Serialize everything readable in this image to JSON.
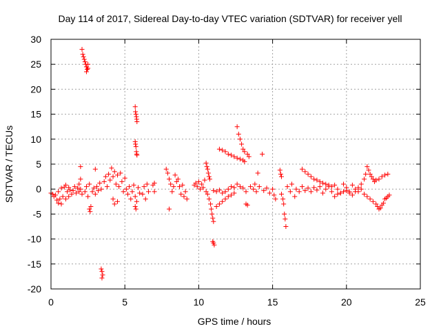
{
  "chart_data": {
    "type": "scatter",
    "title": "Day 114 of 2017, Sidereal Day-to-day VTEC variation (SDTVAR) for receiver yell",
    "xlabel": "GPS time / hours",
    "ylabel": "SDTVAR / TECUs",
    "xlim": [
      0,
      25
    ],
    "ylim": [
      -20,
      30
    ],
    "xticks": [
      0,
      5,
      10,
      15,
      20,
      25
    ],
    "yticks": [
      -20,
      -15,
      -10,
      -5,
      0,
      5,
      10,
      15,
      20,
      25,
      30
    ],
    "grid": true,
    "marker": "+",
    "marker_color": "#ff0000",
    "series": [
      {
        "name": "SDTVAR",
        "points": [
          [
            0.0,
            -0.8
          ],
          [
            0.1,
            -1.0
          ],
          [
            0.2,
            -1.5
          ],
          [
            0.3,
            -1.2
          ],
          [
            0.4,
            -2.2
          ],
          [
            0.5,
            -2.8
          ],
          [
            0.5,
            -0.5
          ],
          [
            0.6,
            -2.0
          ],
          [
            0.7,
            -3.0
          ],
          [
            0.7,
            0.2
          ],
          [
            0.8,
            -1.5
          ],
          [
            0.9,
            0.4
          ],
          [
            1.0,
            -2.0
          ],
          [
            1.0,
            0.8
          ],
          [
            1.1,
            -0.5
          ],
          [
            1.2,
            -1.5
          ],
          [
            1.2,
            0.3
          ],
          [
            1.3,
            -0.2
          ],
          [
            1.4,
            -1.0
          ],
          [
            1.5,
            -0.3
          ],
          [
            1.6,
            0.5
          ],
          [
            1.7,
            -0.8
          ],
          [
            1.8,
            0.2
          ],
          [
            1.9,
            1.0
          ],
          [
            1.9,
            -0.5
          ],
          [
            2.0,
            2.0
          ],
          [
            2.0,
            4.5
          ],
          [
            2.0,
            0.0
          ],
          [
            2.1,
            -1.0
          ],
          [
            2.1,
            28.0
          ],
          [
            2.15,
            27.0
          ],
          [
            2.2,
            26.5
          ],
          [
            2.25,
            26.0
          ],
          [
            2.3,
            25.5
          ],
          [
            2.35,
            25.0
          ],
          [
            2.4,
            24.5
          ],
          [
            2.4,
            23.5
          ],
          [
            2.45,
            24.0
          ],
          [
            2.5,
            25.0
          ],
          [
            2.5,
            24.2
          ],
          [
            2.3,
            -0.5
          ],
          [
            2.4,
            0.5
          ],
          [
            2.5,
            -1.5
          ],
          [
            2.6,
            1.0
          ],
          [
            2.6,
            -4.0
          ],
          [
            2.65,
            -4.5
          ],
          [
            2.7,
            -3.5
          ],
          [
            2.8,
            -0.5
          ],
          [
            2.9,
            0.2
          ],
          [
            3.0,
            -1.0
          ],
          [
            3.0,
            4.0
          ],
          [
            3.1,
            0.5
          ],
          [
            3.2,
            -0.3
          ],
          [
            3.3,
            1.2
          ],
          [
            3.4,
            0.0
          ],
          [
            3.4,
            -16.0
          ],
          [
            3.45,
            -16.5
          ],
          [
            3.5,
            -17.2
          ],
          [
            3.45,
            -17.8
          ],
          [
            3.6,
            1.5
          ],
          [
            3.7,
            2.5
          ],
          [
            3.8,
            0.5
          ],
          [
            3.9,
            3.0
          ],
          [
            4.0,
            1.8
          ],
          [
            4.1,
            4.2
          ],
          [
            4.2,
            -2.0
          ],
          [
            4.2,
            2.5
          ],
          [
            4.3,
            -3.0
          ],
          [
            4.3,
            3.5
          ],
          [
            4.4,
            1.0
          ],
          [
            4.5,
            2.8
          ],
          [
            4.5,
            -2.5
          ],
          [
            4.6,
            0.5
          ],
          [
            4.7,
            3.2
          ],
          [
            4.8,
            1.5
          ],
          [
            4.9,
            -0.5
          ],
          [
            5.0,
            2.2
          ],
          [
            5.1,
            0.0
          ],
          [
            5.2,
            -1.0
          ],
          [
            5.3,
            0.5
          ],
          [
            5.4,
            -2.0
          ],
          [
            5.5,
            -0.5
          ],
          [
            5.6,
            0.8
          ],
          [
            5.7,
            -1.5
          ],
          [
            5.7,
            -3.5
          ],
          [
            5.75,
            -4.0
          ],
          [
            5.8,
            -2.5
          ],
          [
            5.9,
            0.3
          ],
          [
            6.0,
            -0.8
          ],
          [
            5.7,
            16.5
          ],
          [
            5.72,
            15.5
          ],
          [
            5.75,
            15.0
          ],
          [
            5.78,
            14.5
          ],
          [
            5.8,
            14.0
          ],
          [
            5.82,
            13.5
          ],
          [
            5.7,
            9.5
          ],
          [
            5.72,
            9.0
          ],
          [
            5.75,
            8.5
          ],
          [
            5.78,
            7.5
          ],
          [
            5.8,
            7.0
          ],
          [
            5.82,
            6.8
          ],
          [
            6.2,
            -1.0
          ],
          [
            6.3,
            0.5
          ],
          [
            6.4,
            -2.0
          ],
          [
            6.5,
            1.0
          ],
          [
            6.6,
            -0.5
          ],
          [
            6.9,
            0.8
          ],
          [
            7.0,
            -0.5
          ],
          [
            7.0,
            1.2
          ],
          [
            7.8,
            4.0
          ],
          [
            7.9,
            3.2
          ],
          [
            8.0,
            2.0
          ],
          [
            8.0,
            -4.0
          ],
          [
            8.1,
            1.0
          ],
          [
            8.2,
            -0.5
          ],
          [
            8.3,
            0.5
          ],
          [
            8.4,
            2.8
          ],
          [
            8.5,
            1.5
          ],
          [
            8.6,
            2.0
          ],
          [
            8.7,
            0.5
          ],
          [
            8.8,
            -1.0
          ],
          [
            8.9,
            0.8
          ],
          [
            9.0,
            -1.5
          ],
          [
            9.1,
            -0.5
          ],
          [
            9.2,
            -2.0
          ],
          [
            9.7,
            0.8
          ],
          [
            9.8,
            1.2
          ],
          [
            9.9,
            0.5
          ],
          [
            10.0,
            1.5
          ],
          [
            10.1,
            0.0
          ],
          [
            10.2,
            1.0
          ],
          [
            10.3,
            0.3
          ],
          [
            10.4,
            1.8
          ],
          [
            10.5,
            5.2
          ],
          [
            10.55,
            4.5
          ],
          [
            10.6,
            4.0
          ],
          [
            10.65,
            3.2
          ],
          [
            10.7,
            2.5
          ],
          [
            10.75,
            2.0
          ],
          [
            10.5,
            -0.5
          ],
          [
            10.6,
            -1.0
          ],
          [
            10.7,
            -2.0
          ],
          [
            10.8,
            -3.0
          ],
          [
            10.85,
            -4.0
          ],
          [
            10.9,
            -5.0
          ],
          [
            10.95,
            -5.8
          ],
          [
            11.0,
            -6.5
          ],
          [
            11.0,
            -10.8
          ],
          [
            11.05,
            -11.2
          ],
          [
            10.95,
            -10.5
          ],
          [
            11.0,
            -0.3
          ],
          [
            11.2,
            -0.5
          ],
          [
            11.4,
            -0.2
          ],
          [
            11.6,
            -0.8
          ],
          [
            11.8,
            -0.5
          ],
          [
            12.0,
            0.0
          ],
          [
            12.2,
            0.5
          ],
          [
            12.4,
            0.3
          ],
          [
            12.6,
            1.0
          ],
          [
            12.8,
            0.5
          ],
          [
            13.0,
            0.2
          ],
          [
            13.2,
            -0.5
          ],
          [
            11.2,
            -3.5
          ],
          [
            11.4,
            -3.0
          ],
          [
            11.6,
            -2.5
          ],
          [
            11.8,
            -2.0
          ],
          [
            12.0,
            -1.5
          ],
          [
            12.2,
            -1.2
          ],
          [
            12.4,
            -0.8
          ],
          [
            11.4,
            8.0
          ],
          [
            11.6,
            7.8
          ],
          [
            11.8,
            7.5
          ],
          [
            12.0,
            7.0
          ],
          [
            12.2,
            6.8
          ],
          [
            12.4,
            6.5
          ],
          [
            12.6,
            6.2
          ],
          [
            12.8,
            6.0
          ],
          [
            13.0,
            5.8
          ],
          [
            13.1,
            5.5
          ],
          [
            12.6,
            12.5
          ],
          [
            12.7,
            11.0
          ],
          [
            12.8,
            10.0
          ],
          [
            12.9,
            9.0
          ],
          [
            13.0,
            8.0
          ],
          [
            13.1,
            7.5
          ],
          [
            13.3,
            7.0
          ],
          [
            13.4,
            6.5
          ],
          [
            13.2,
            -3.0
          ],
          [
            13.3,
            -3.2
          ],
          [
            13.5,
            0.5
          ],
          [
            13.7,
            0.0
          ],
          [
            13.8,
            1.0
          ],
          [
            13.9,
            -0.5
          ],
          [
            14.0,
            3.2
          ],
          [
            14.1,
            0.5
          ],
          [
            14.3,
            7.0
          ],
          [
            14.4,
            -0.3
          ],
          [
            14.6,
            0.2
          ],
          [
            14.8,
            -0.8
          ],
          [
            15.0,
            0.0
          ],
          [
            15.1,
            -1.2
          ],
          [
            15.2,
            -2.0
          ],
          [
            15.5,
            3.8
          ],
          [
            15.55,
            3.0
          ],
          [
            15.6,
            2.5
          ],
          [
            15.6,
            -1.0
          ],
          [
            15.7,
            -2.0
          ],
          [
            15.75,
            -3.0
          ],
          [
            15.8,
            -5.0
          ],
          [
            15.85,
            -6.0
          ],
          [
            15.9,
            -7.5
          ],
          [
            16.0,
            0.5
          ],
          [
            16.2,
            -0.5
          ],
          [
            16.3,
            1.0
          ],
          [
            16.5,
            -1.5
          ],
          [
            16.6,
            0.0
          ],
          [
            16.8,
            -0.5
          ],
          [
            17.0,
            0.5
          ],
          [
            17.2,
            -0.3
          ],
          [
            17.4,
            0.2
          ],
          [
            17.6,
            -0.5
          ],
          [
            17.8,
            0.3
          ],
          [
            18.0,
            -0.2
          ],
          [
            18.2,
            0.5
          ],
          [
            18.4,
            -0.8
          ],
          [
            18.6,
            0.0
          ],
          [
            18.8,
            0.5
          ],
          [
            19.0,
            -0.5
          ],
          [
            19.2,
            0.8
          ],
          [
            19.4,
            0.0
          ],
          [
            19.6,
            -0.8
          ],
          [
            19.8,
            1.0
          ],
          [
            20.0,
            0.3
          ],
          [
            20.2,
            -0.5
          ],
          [
            20.4,
            0.8
          ],
          [
            20.6,
            0.0
          ],
          [
            20.8,
            -0.5
          ],
          [
            21.0,
            1.0
          ],
          [
            17.0,
            4.0
          ],
          [
            17.2,
            3.5
          ],
          [
            17.4,
            3.0
          ],
          [
            17.6,
            2.5
          ],
          [
            17.8,
            2.0
          ],
          [
            18.0,
            1.8
          ],
          [
            18.2,
            1.5
          ],
          [
            18.4,
            1.2
          ],
          [
            18.6,
            1.0
          ],
          [
            18.8,
            0.8
          ],
          [
            19.0,
            0.5
          ],
          [
            19.2,
            -1.5
          ],
          [
            19.4,
            -1.0
          ],
          [
            19.6,
            -0.8
          ],
          [
            19.8,
            -0.5
          ],
          [
            20.0,
            -0.3
          ],
          [
            20.2,
            -0.8
          ],
          [
            20.4,
            -1.2
          ],
          [
            20.6,
            -0.5
          ],
          [
            20.8,
            0.3
          ],
          [
            21.0,
            0.0
          ],
          [
            21.2,
            2.0
          ],
          [
            21.3,
            3.0
          ],
          [
            21.4,
            4.5
          ],
          [
            21.5,
            3.8
          ],
          [
            21.6,
            3.0
          ],
          [
            21.7,
            2.5
          ],
          [
            21.8,
            2.0
          ],
          [
            21.9,
            1.5
          ],
          [
            22.0,
            1.8
          ],
          [
            22.2,
            2.0
          ],
          [
            22.4,
            2.5
          ],
          [
            22.6,
            2.8
          ],
          [
            22.8,
            3.0
          ],
          [
            21.2,
            -1.0
          ],
          [
            21.4,
            -1.5
          ],
          [
            21.6,
            -2.0
          ],
          [
            21.8,
            -2.5
          ],
          [
            22.0,
            -3.0
          ],
          [
            22.1,
            -3.5
          ],
          [
            22.2,
            -4.0
          ],
          [
            22.3,
            -3.8
          ],
          [
            22.4,
            -3.2
          ],
          [
            22.5,
            -2.8
          ],
          [
            22.6,
            -2.0
          ],
          [
            22.7,
            -1.8
          ],
          [
            22.8,
            -1.5
          ],
          [
            22.9,
            -1.2
          ]
        ]
      }
    ]
  }
}
